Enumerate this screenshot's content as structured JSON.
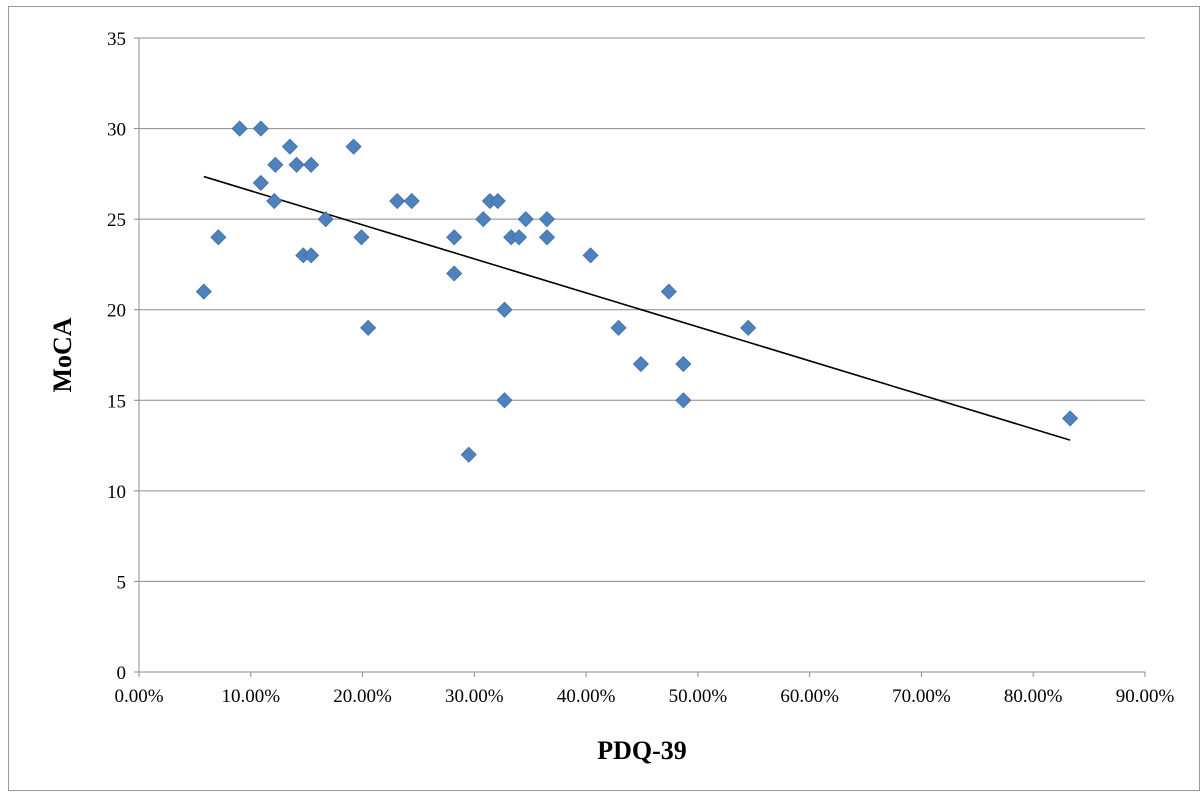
{
  "chart_data": {
    "type": "scatter",
    "title": "",
    "xlabel": "PDQ-39",
    "ylabel": "MoCA",
    "xlim": [
      0,
      0.9
    ],
    "ylim": [
      0,
      35
    ],
    "x_ticks": [
      0,
      0.1,
      0.2,
      0.3,
      0.4,
      0.5,
      0.6,
      0.7,
      0.8,
      0.9
    ],
    "x_tick_labels": [
      "0.00%",
      "10.00%",
      "20.00%",
      "30.00%",
      "40.00%",
      "50.00%",
      "60.00%",
      "70.00%",
      "80.00%",
      "90.00%"
    ],
    "y_ticks": [
      0,
      5,
      10,
      15,
      20,
      25,
      30,
      35
    ],
    "y_tick_labels": [
      "0",
      "5",
      "10",
      "15",
      "20",
      "25",
      "30",
      "35"
    ],
    "grid": "horizontal",
    "legend": "none",
    "marker_color": "#4f81bd",
    "trendline_color": "#000000",
    "points": [
      {
        "x": 0.058,
        "y": 21
      },
      {
        "x": 0.071,
        "y": 24
      },
      {
        "x": 0.09,
        "y": 30
      },
      {
        "x": 0.109,
        "y": 30
      },
      {
        "x": 0.109,
        "y": 27
      },
      {
        "x": 0.121,
        "y": 26
      },
      {
        "x": 0.122,
        "y": 28
      },
      {
        "x": 0.135,
        "y": 29
      },
      {
        "x": 0.141,
        "y": 28
      },
      {
        "x": 0.147,
        "y": 23
      },
      {
        "x": 0.154,
        "y": 23
      },
      {
        "x": 0.154,
        "y": 28
      },
      {
        "x": 0.167,
        "y": 25
      },
      {
        "x": 0.192,
        "y": 29
      },
      {
        "x": 0.199,
        "y": 24
      },
      {
        "x": 0.205,
        "y": 19
      },
      {
        "x": 0.231,
        "y": 26
      },
      {
        "x": 0.244,
        "y": 26
      },
      {
        "x": 0.282,
        "y": 24
      },
      {
        "x": 0.282,
        "y": 22
      },
      {
        "x": 0.295,
        "y": 12
      },
      {
        "x": 0.308,
        "y": 25
      },
      {
        "x": 0.314,
        "y": 26
      },
      {
        "x": 0.321,
        "y": 26
      },
      {
        "x": 0.327,
        "y": 20
      },
      {
        "x": 0.327,
        "y": 15
      },
      {
        "x": 0.333,
        "y": 24
      },
      {
        "x": 0.34,
        "y": 24
      },
      {
        "x": 0.346,
        "y": 25
      },
      {
        "x": 0.365,
        "y": 25
      },
      {
        "x": 0.365,
        "y": 24
      },
      {
        "x": 0.404,
        "y": 23
      },
      {
        "x": 0.429,
        "y": 19
      },
      {
        "x": 0.449,
        "y": 17
      },
      {
        "x": 0.474,
        "y": 21
      },
      {
        "x": 0.487,
        "y": 17
      },
      {
        "x": 0.487,
        "y": 15
      },
      {
        "x": 0.545,
        "y": 19
      },
      {
        "x": 0.833,
        "y": 14
      }
    ],
    "trendline": {
      "x": [
        0.058,
        0.833
      ],
      "y": [
        27.35,
        12.8
      ]
    }
  }
}
